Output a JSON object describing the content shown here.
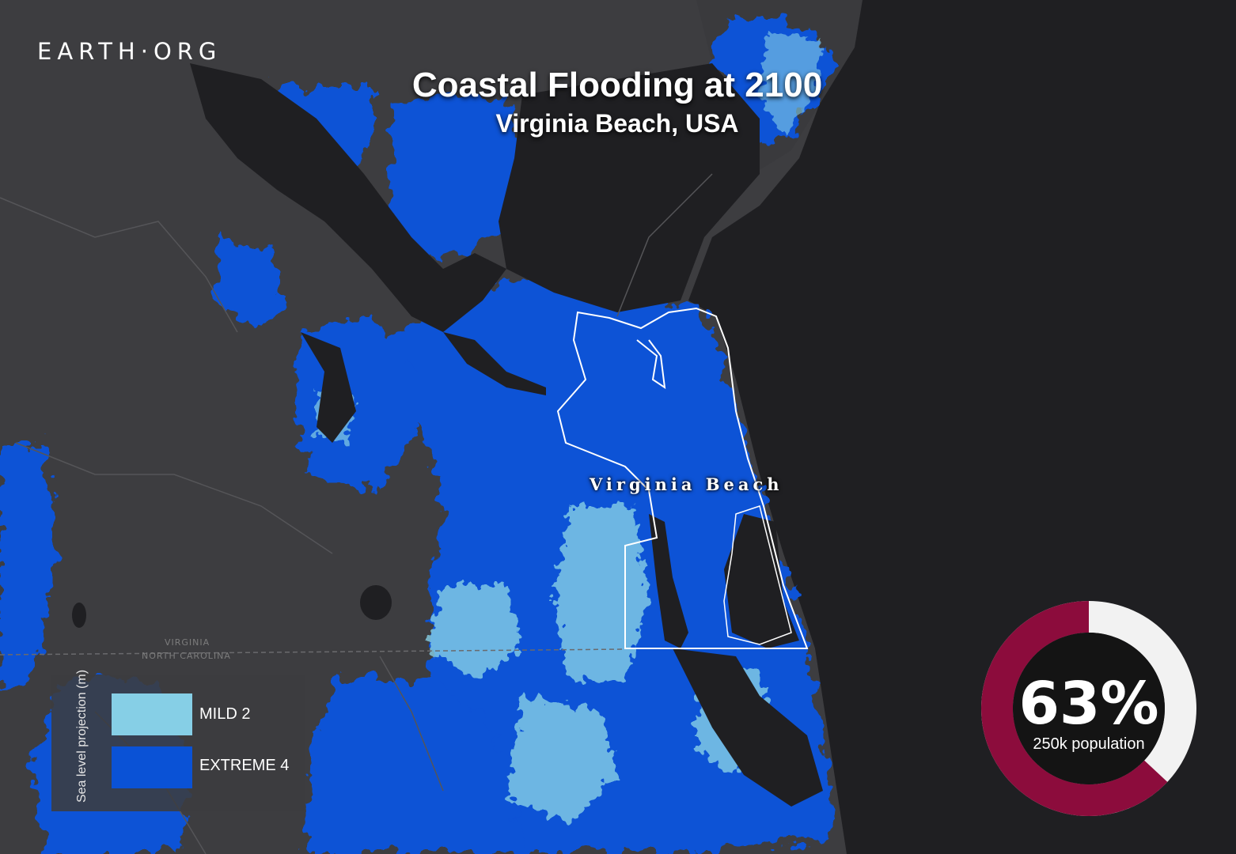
{
  "logo": "EARTH·ORG",
  "title": "Coastal Flooding at 2100",
  "subtitle": "Virginia Beach, USA",
  "place_label": "Virginia Beach",
  "state_labels": {
    "north": "VIRGINIA",
    "south": "NORTH CAROLINA"
  },
  "legend": {
    "axis_label": "Sea level projection (m)",
    "items": [
      {
        "label": "MILD",
        "value": "2",
        "color": "#86cfe6"
      },
      {
        "label": "EXTREME",
        "value": "4",
        "color": "#0a52d6"
      }
    ]
  },
  "stat": {
    "percent": 63,
    "value": "63%",
    "caption": "250k population",
    "ring_color": "#8c0c3c",
    "rest_color": "#f2f2f2",
    "center_color": "#141414"
  },
  "colors": {
    "land": "#3d3d40",
    "water": "#1f1f22",
    "extreme": "#0a52d6",
    "mild": "#86cfe6",
    "boundary": "#ffffff"
  }
}
